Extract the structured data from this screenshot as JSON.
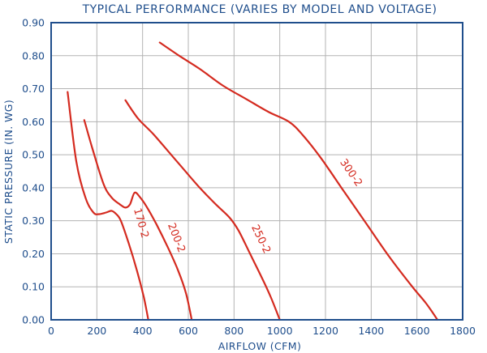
{
  "chart_data": {
    "type": "line",
    "title": "TYPICAL PERFORMANCE (VARIES BY MODEL AND VOLTAGE)",
    "xlabel": "AIRFLOW (CFM)",
    "ylabel": "STATIC PRESSURE (IN. WG)",
    "xlim": [
      0,
      1800
    ],
    "ylim": [
      0,
      0.9
    ],
    "x_ticks": [
      "0",
      "200",
      "400",
      "600",
      "800",
      "1000",
      "1200",
      "1400",
      "1600",
      "1800"
    ],
    "y_ticks": [
      "0.00",
      "0.10",
      "0.20",
      "0.30",
      "0.40",
      "0.50",
      "0.60",
      "0.70",
      "0.80",
      "0.90"
    ],
    "grid": true,
    "colors": {
      "series": "#d42a1f",
      "axis": "#1f4e8c",
      "grid": "#b3b3b3"
    },
    "series": [
      {
        "name": "170-2",
        "points": [
          [
            72,
            0.69
          ],
          [
            110,
            0.48
          ],
          [
            150,
            0.37
          ],
          [
            185,
            0.325
          ],
          [
            210,
            0.32
          ],
          [
            240,
            0.325
          ],
          [
            265,
            0.33
          ],
          [
            285,
            0.32
          ],
          [
            305,
            0.3
          ],
          [
            340,
            0.23
          ],
          [
            375,
            0.15
          ],
          [
            405,
            0.07
          ],
          [
            425,
            0.0
          ]
        ]
      },
      {
        "name": "200-2",
        "points": [
          [
            145,
            0.605
          ],
          [
            180,
            0.52
          ],
          [
            230,
            0.41
          ],
          [
            265,
            0.37
          ],
          [
            300,
            0.35
          ],
          [
            325,
            0.34
          ],
          [
            345,
            0.35
          ],
          [
            365,
            0.385
          ],
          [
            390,
            0.37
          ],
          [
            420,
            0.34
          ],
          [
            460,
            0.29
          ],
          [
            510,
            0.22
          ],
          [
            555,
            0.15
          ],
          [
            590,
            0.08
          ],
          [
            615,
            0.0
          ]
        ]
      },
      {
        "name": "250-2",
        "points": [
          [
            325,
            0.665
          ],
          [
            380,
            0.61
          ],
          [
            450,
            0.56
          ],
          [
            550,
            0.48
          ],
          [
            650,
            0.4
          ],
          [
            720,
            0.35
          ],
          [
            780,
            0.31
          ],
          [
            820,
            0.27
          ],
          [
            870,
            0.2
          ],
          [
            920,
            0.13
          ],
          [
            960,
            0.07
          ],
          [
            1000,
            0.0
          ]
        ]
      },
      {
        "name": "300-2",
        "points": [
          [
            475,
            0.84
          ],
          [
            560,
            0.8
          ],
          [
            650,
            0.76
          ],
          [
            750,
            0.71
          ],
          [
            850,
            0.67
          ],
          [
            950,
            0.63
          ],
          [
            1040,
            0.6
          ],
          [
            1100,
            0.56
          ],
          [
            1180,
            0.49
          ],
          [
            1280,
            0.39
          ],
          [
            1380,
            0.29
          ],
          [
            1480,
            0.19
          ],
          [
            1580,
            0.1
          ],
          [
            1640,
            0.05
          ],
          [
            1690,
            0.0
          ]
        ]
      }
    ],
    "series_labels": [
      {
        "series": 0,
        "text": "170-2",
        "at": [
          380,
          0.29
        ]
      },
      {
        "series": 1,
        "text": "200-2",
        "at": [
          535,
          0.245
        ]
      },
      {
        "series": 2,
        "text": "250-2",
        "at": [
          905,
          0.24
        ]
      },
      {
        "series": 3,
        "text": "300-2",
        "at": [
          1300,
          0.44
        ]
      }
    ]
  }
}
